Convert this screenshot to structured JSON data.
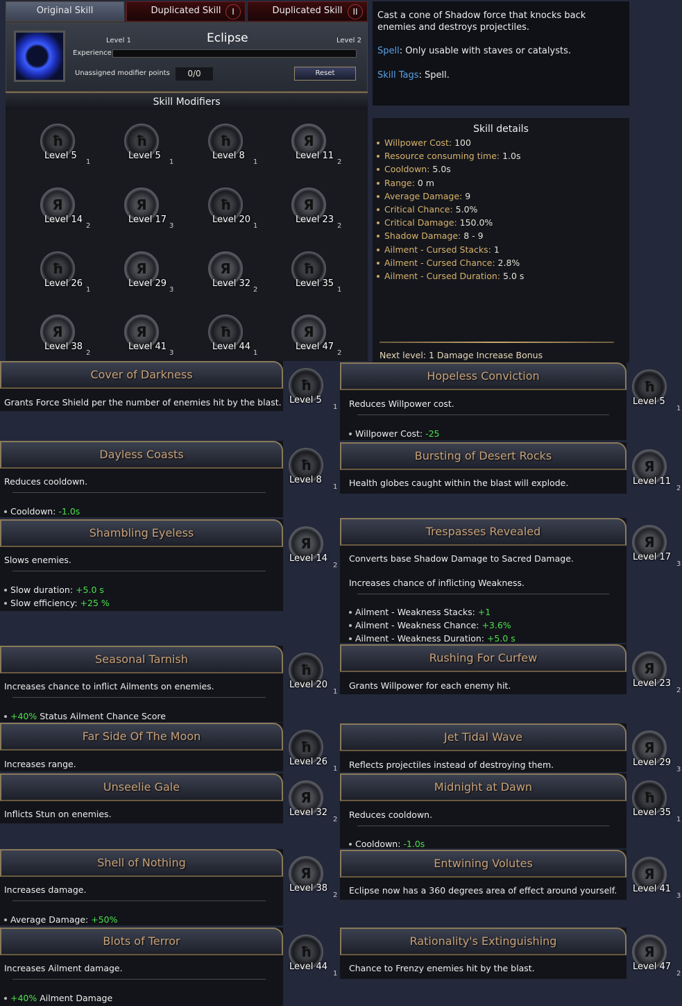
{
  "tabs": [
    {
      "label": "Original Skill"
    },
    {
      "label": "Duplicated Skill",
      "num": "I"
    },
    {
      "label": "Duplicated Skill",
      "num": "II"
    }
  ],
  "skill": {
    "name": "Eclipse",
    "level_current": "Level 1",
    "level_next": "Level 2",
    "experience_label": "Experience",
    "experience_progress": 0,
    "points_label": "Unassigned modifier points",
    "points_value": "0/0",
    "reset_label": "Reset",
    "icon": "eclipse-orb-icon"
  },
  "modifiers": {
    "title": "Skill Modifiers",
    "items": [
      {
        "level": "Level 5",
        "count": "1",
        "icon": "rune-h"
      },
      {
        "level": "Level 5",
        "count": "1",
        "icon": "rune-h"
      },
      {
        "level": "Level 8",
        "count": "1",
        "icon": "rune-h"
      },
      {
        "level": "Level 11",
        "count": "2",
        "icon": "rune-r-crossed"
      },
      {
        "level": "Level 14",
        "count": "2",
        "icon": "rune-r-crossed"
      },
      {
        "level": "Level 17",
        "count": "3",
        "icon": "rune-r-spiked"
      },
      {
        "level": "Level 20",
        "count": "1",
        "icon": "rune-h"
      },
      {
        "level": "Level 23",
        "count": "2",
        "icon": "rune-r-crossed"
      },
      {
        "level": "Level 26",
        "count": "1",
        "icon": "rune-h"
      },
      {
        "level": "Level 29",
        "count": "3",
        "icon": "rune-r-spiked"
      },
      {
        "level": "Level 32",
        "count": "2",
        "icon": "rune-r-crossed"
      },
      {
        "level": "Level 35",
        "count": "1",
        "icon": "rune-h"
      },
      {
        "level": "Level 38",
        "count": "2",
        "icon": "rune-r-crossed"
      },
      {
        "level": "Level 41",
        "count": "3",
        "icon": "rune-r-spiked"
      },
      {
        "level": "Level 44",
        "count": "1",
        "icon": "rune-h"
      },
      {
        "level": "Level 47",
        "count": "2",
        "icon": "rune-r-crossed"
      }
    ]
  },
  "description": {
    "text": "Cast a cone of Shadow force that knocks back enemies and destroys projectiles.",
    "spell_label": "Spell",
    "spell_text": " Only usable with staves or catalysts.",
    "tags_label": "Skill Tags",
    "tags_text": " Spell."
  },
  "details": {
    "title": "Skill details",
    "items": [
      {
        "label": "Willpower Cost:",
        "value": " 100"
      },
      {
        "label": "Resource consuming time:",
        "value": " 1.0s"
      },
      {
        "label": "Cooldown:",
        "value": " 5.0s"
      },
      {
        "label": "Range:",
        "value": " 0 m"
      },
      {
        "label": "Average Damage:",
        "value": " 9"
      },
      {
        "label": "Critical Chance:",
        "value": " 5.0%"
      },
      {
        "label": "Critical Damage:",
        "value": " 150.0%"
      },
      {
        "label": "Shadow Damage:",
        "value": " 8 - 9"
      },
      {
        "label": "Ailment - Cursed Stacks:",
        "value": " 1"
      },
      {
        "label": "Ailment - Cursed Chance:",
        "value": " 2.8%"
      },
      {
        "label": "Ailment - Cursed Duration:",
        "value": " 5.0 s"
      }
    ],
    "next_level": "Next level: 1 Damage Increase Bonus"
  },
  "cards": [
    {
      "title": "Cover of Darkness",
      "desc": [
        "Grants Force Shield per the number of enemies hit by the blast."
      ],
      "bullets": [],
      "level": "Level 5",
      "count": "1"
    },
    {
      "title": "Dayless Coasts",
      "desc": [
        "Reduces cooldown."
      ],
      "bullets": [
        {
          "pre": "Cooldown: ",
          "val": "-1.0s",
          "post": ""
        }
      ],
      "level": "Level 8",
      "count": "1"
    },
    {
      "title": "Shambling Eyeless",
      "desc": [
        "Slows enemies."
      ],
      "bullets": [
        {
          "pre": "Slow duration: ",
          "val": "+5.0 s",
          "post": ""
        },
        {
          "pre": "Slow efficiency: ",
          "val": "+25 %",
          "post": ""
        }
      ],
      "level": "Level 14",
      "count": "2"
    },
    {
      "title": "Seasonal Tarnish",
      "desc": [
        "Increases chance to inflict Ailments on enemies."
      ],
      "bullets": [
        {
          "pre": "",
          "val": "+40%",
          "post": " Status Ailment Chance Score"
        }
      ],
      "level": "Level 20",
      "count": "1"
    },
    {
      "title": "Far Side Of The Moon",
      "desc": [
        "Increases range."
      ],
      "bullets": [],
      "level": "Level 26",
      "count": "1"
    },
    {
      "title": "Unseelie Gale",
      "desc": [
        "Inflicts Stun on enemies."
      ],
      "bullets": [],
      "level": "Level 32",
      "count": "2"
    },
    {
      "title": "Shell of Nothing",
      "desc": [
        "Increases damage."
      ],
      "bullets": [
        {
          "pre": "Average Damage: ",
          "val": "+50%",
          "post": ""
        }
      ],
      "level": "Level 38",
      "count": "2"
    },
    {
      "title": "Blots of Terror",
      "desc": [
        "Increases Ailment damage."
      ],
      "bullets": [
        {
          "pre": "",
          "val": "+40%",
          "post": " Ailment Damage"
        }
      ],
      "level": "Level 44",
      "count": "1"
    },
    {
      "title": "Hopeless Conviction",
      "desc": [
        "Reduces Willpower cost."
      ],
      "bullets": [
        {
          "pre": "Willpower Cost: ",
          "val": "-25",
          "post": ""
        }
      ],
      "level": "Level 5",
      "count": "1"
    },
    {
      "title": "Bursting of Desert Rocks",
      "desc": [
        "Health globes caught within the blast will explode."
      ],
      "bullets": [],
      "level": "Level 11",
      "count": "2"
    },
    {
      "title": "Trespasses Revealed",
      "desc": [
        "Converts base Shadow Damage to Sacred Damage.",
        "Increases chance of inflicting Weakness."
      ],
      "bullets": [
        {
          "pre": "Ailment - Weakness Stacks: ",
          "val": "+1",
          "post": ""
        },
        {
          "pre": "Ailment - Weakness Chance: ",
          "val": "+3.6%",
          "post": ""
        },
        {
          "pre": "Ailment - Weakness Duration: ",
          "val": "+5.0 s",
          "post": ""
        }
      ],
      "level": "Level 17",
      "count": "3"
    },
    {
      "title": "Rushing For Curfew",
      "desc": [
        "Grants Willpower for each enemy hit."
      ],
      "bullets": [],
      "level": "Level 23",
      "count": "2"
    },
    {
      "title": "Jet Tidal Wave",
      "desc": [
        "Reflects projectiles instead of destroying them."
      ],
      "bullets": [],
      "level": "Level 29",
      "count": "3"
    },
    {
      "title": "Midnight at Dawn",
      "desc": [
        "Reduces cooldown."
      ],
      "bullets": [
        {
          "pre": "Cooldown: ",
          "val": "-1.0s",
          "post": ""
        }
      ],
      "level": "Level 35",
      "count": "1"
    },
    {
      "title": "Entwining Volutes",
      "desc": [
        "Eclipse now has a 360 degrees area of effect around yourself."
      ],
      "bullets": [],
      "level": "Level 41",
      "count": "3"
    },
    {
      "title": "Rationality's Extinguishing",
      "desc": [
        "Chance to Frenzy enemies hit by the blast."
      ],
      "bullets": [],
      "level": "Level 47",
      "count": "2"
    }
  ],
  "colors": {
    "title_tan": "#c8a27a",
    "detail_gold": "#d9b36b",
    "bonus_green": "#4fe04f",
    "keyword_blue": "#5aa0e8"
  }
}
